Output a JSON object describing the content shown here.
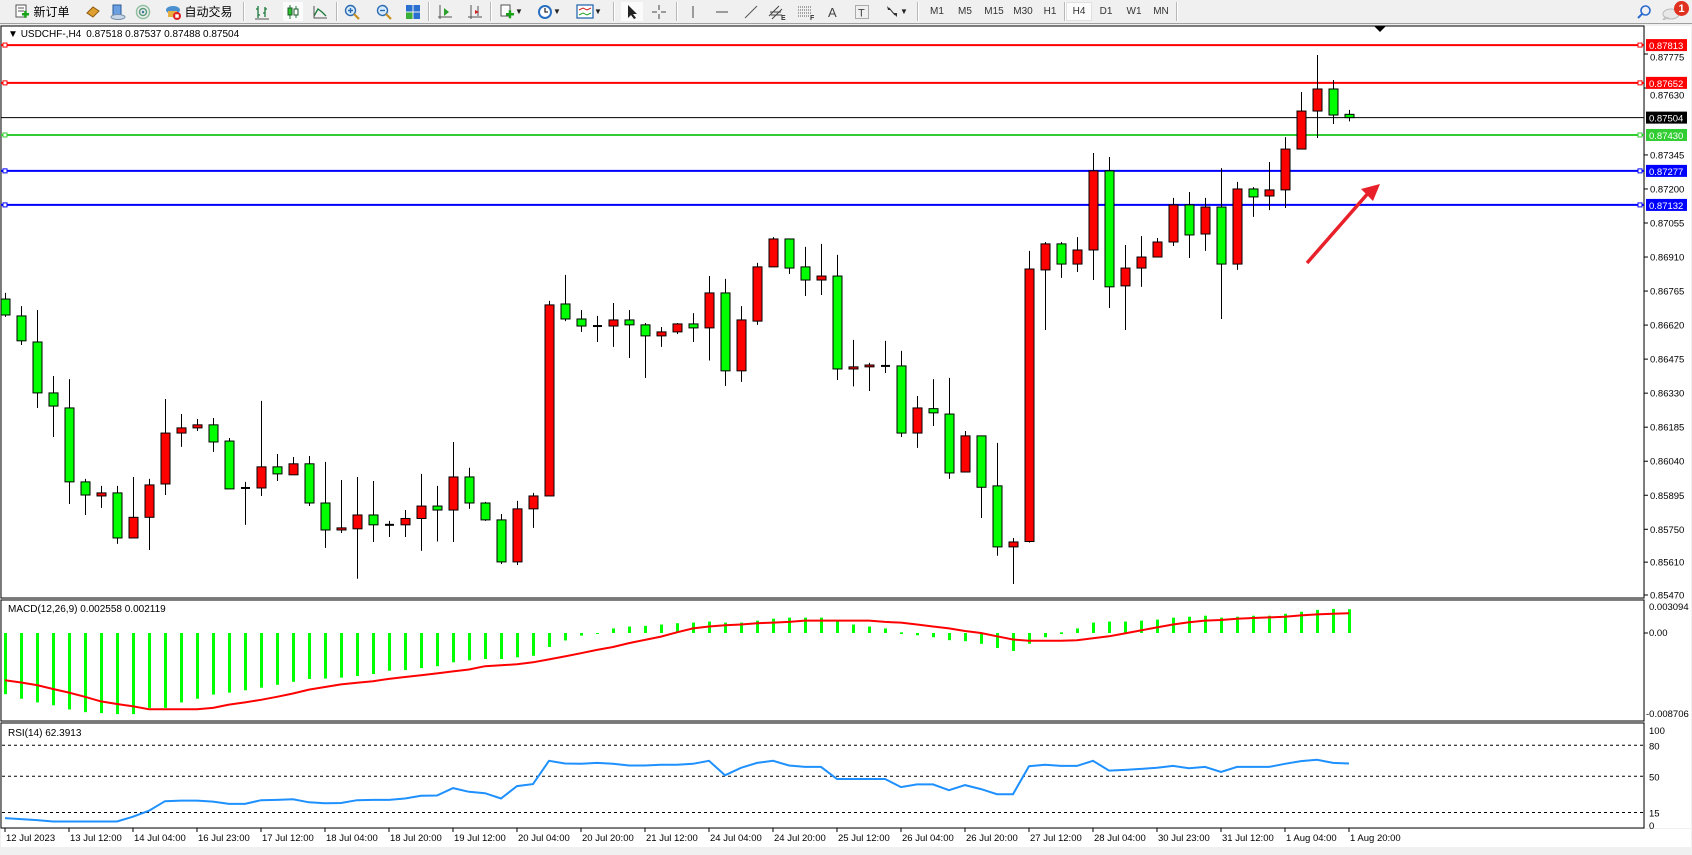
{
  "toolbar": {
    "new_order": "新订单",
    "auto_trading": "自动交易",
    "timeframes": [
      "M1",
      "M5",
      "M15",
      "M30",
      "H1",
      "H4",
      "D1",
      "W1",
      "MN"
    ],
    "active_timeframe": "H4",
    "notification_count": "1",
    "icons": [
      "new-order-icon",
      "market-watch-chest-icon",
      "navigator-icon",
      "signals-icon",
      "auto-trading-icon",
      "bar-chart-icon",
      "candlestick-icon",
      "line-chart-icon",
      "zoom-in-icon",
      "zoom-out-icon",
      "tile-windows-icon",
      "auto-scroll-icon",
      "chart-shift-icon",
      "new-chart-icon",
      "periods-clock-icon",
      "templates-icon",
      "cursor-icon",
      "crosshair-icon",
      "vertical-line-icon",
      "horizontal-line-icon",
      "trendline-icon",
      "equidistant-channel-icon",
      "fibonacci-icon",
      "text-icon",
      "text-label-icon",
      "arrows-icon",
      "search-icon",
      "chat-icon"
    ]
  },
  "chart": {
    "symbol": "USDCHF-,H4",
    "ohlc_text": "0.87518 0.87537 0.87488 0.87504",
    "bull_color": "#ff0000",
    "bear_color": "#00ff00",
    "price_lines": [
      {
        "price": 0.87813,
        "label": "0.87813",
        "color": "#ff0000"
      },
      {
        "price": 0.87652,
        "label": "0.87652",
        "color": "#ff0000"
      },
      {
        "price": 0.8743,
        "label": "0.87430",
        "color": "#32cd32"
      },
      {
        "price": 0.87277,
        "label": "0.87277",
        "color": "#0000ff"
      },
      {
        "price": 0.87132,
        "label": "0.87132",
        "color": "#0000ff"
      }
    ],
    "bid": {
      "price": 0.87504,
      "label": "0.87504",
      "color": "#000000"
    },
    "arrow_color": "#e8202a"
  },
  "macd": {
    "label": "MACD(12,26,9) 0.002558 0.002119",
    "axis_labels": [
      "0.003094",
      "0.00",
      "-0.008706"
    ],
    "hist_color": "#00ff00",
    "signal_color": "#ff0000"
  },
  "rsi": {
    "label": "RSI(14) 62.3913",
    "axis_labels": [
      "100",
      "80",
      "50",
      "15",
      "0"
    ],
    "levels": [
      80,
      50,
      15
    ],
    "color": "#1e90ff"
  },
  "chart_data": {
    "type": "candlestick",
    "symbol": "USDCHF-",
    "timeframe": "H4",
    "ylim": [
      0.8547,
      0.87813
    ],
    "y_ticks": [
      "0.87775",
      "0.87630",
      "0.87345",
      "0.87200",
      "0.87055",
      "0.86910",
      "0.86765",
      "0.86620",
      "0.86475",
      "0.86330",
      "0.86185",
      "0.86040",
      "0.85895",
      "0.85750",
      "0.85610",
      "0.85470"
    ],
    "time_labels": [
      "12 Jul 2023",
      "13 Jul 12:00",
      "14 Jul 04:00",
      "16 Jul 23:00",
      "17 Jul 12:00",
      "18 Jul 04:00",
      "18 Jul 20:00",
      "19 Jul 12:00",
      "20 Jul 04:00",
      "20 Jul 20:00",
      "21 Jul 12:00",
      "24 Jul 04:00",
      "24 Jul 20:00",
      "25 Jul 12:00",
      "26 Jul 04:00",
      "26 Jul 20:00",
      "27 Jul 12:00",
      "28 Jul 04:00",
      "30 Jul 23:00",
      "31 Jul 12:00",
      "1 Aug 04:00",
      "1 Aug 20:00"
    ],
    "ohlc_columns": [
      "open",
      "high",
      "low",
      "close"
    ],
    "candles": [
      [
        0.86731,
        0.86757,
        0.86655,
        0.86663
      ],
      [
        0.86659,
        0.86701,
        0.86535,
        0.86553
      ],
      [
        0.86548,
        0.86684,
        0.86267,
        0.86331
      ],
      [
        0.86331,
        0.86403,
        0.86143,
        0.86275
      ],
      [
        0.86267,
        0.8639,
        0.85858,
        0.85952
      ],
      [
        0.85952,
        0.85965,
        0.85811,
        0.85896
      ],
      [
        0.85892,
        0.85935,
        0.85841,
        0.85905
      ],
      [
        0.85905,
        0.85935,
        0.85688,
        0.85713
      ],
      [
        0.85713,
        0.85973,
        0.85713,
        0.85801
      ],
      [
        0.85801,
        0.85965,
        0.85662,
        0.85939
      ],
      [
        0.85943,
        0.86305,
        0.85896,
        0.8616
      ],
      [
        0.8616,
        0.86241,
        0.86101,
        0.86182
      ],
      [
        0.86182,
        0.8622,
        0.86169,
        0.86195
      ],
      [
        0.86195,
        0.86224,
        0.8608,
        0.86122
      ],
      [
        0.86126,
        0.86139,
        0.85922,
        0.85922
      ],
      [
        0.85922,
        0.85952,
        0.85769,
        0.85926
      ],
      [
        0.85926,
        0.86297,
        0.85892,
        0.86016
      ],
      [
        0.86016,
        0.86071,
        0.85956,
        0.85986
      ],
      [
        0.85982,
        0.86058,
        0.85982,
        0.86029
      ],
      [
        0.86029,
        0.86062,
        0.85849,
        0.85862
      ],
      [
        0.85862,
        0.86037,
        0.85671,
        0.85747
      ],
      [
        0.85747,
        0.8596,
        0.85734,
        0.85756
      ],
      [
        0.85752,
        0.85973,
        0.85539,
        0.85811
      ],
      [
        0.85811,
        0.85956,
        0.85696,
        0.85769
      ],
      [
        0.85769,
        0.85786,
        0.85717,
        0.85769
      ],
      [
        0.85769,
        0.85832,
        0.85717,
        0.85796
      ],
      [
        0.85796,
        0.85986,
        0.85658,
        0.85849
      ],
      [
        0.85849,
        0.85935,
        0.85698,
        0.85832
      ],
      [
        0.85832,
        0.86122,
        0.85696,
        0.85973
      ],
      [
        0.85973,
        0.86012,
        0.85837,
        0.85862
      ],
      [
        0.85862,
        0.85867,
        0.85786,
        0.8579
      ],
      [
        0.8579,
        0.85815,
        0.85602,
        0.85611
      ],
      [
        0.85611,
        0.85871,
        0.85598,
        0.85837
      ],
      [
        0.85837,
        0.85905,
        0.85756,
        0.85892
      ],
      [
        0.85892,
        0.86723,
        0.85892,
        0.86706
      ],
      [
        0.8671,
        0.86834,
        0.86637,
        0.86646
      ],
      [
        0.86646,
        0.86684,
        0.86591,
        0.86616
      ],
      [
        0.86616,
        0.86659,
        0.86548,
        0.86616
      ],
      [
        0.86616,
        0.86714,
        0.86527,
        0.86642
      ],
      [
        0.86642,
        0.86684,
        0.8648,
        0.86621
      ],
      [
        0.86621,
        0.86629,
        0.86395,
        0.86574
      ],
      [
        0.86574,
        0.86612,
        0.86527,
        0.86591
      ],
      [
        0.86591,
        0.86629,
        0.86582,
        0.86625
      ],
      [
        0.86625,
        0.86671,
        0.86548,
        0.86608
      ],
      [
        0.86608,
        0.86829,
        0.86469,
        0.86757
      ],
      [
        0.86757,
        0.86817,
        0.86361,
        0.86425
      ],
      [
        0.86425,
        0.86701,
        0.86378,
        0.86642
      ],
      [
        0.86637,
        0.86885,
        0.86621,
        0.86868
      ],
      [
        0.86868,
        0.86995,
        0.86868,
        0.86987
      ],
      [
        0.86987,
        0.86987,
        0.86838,
        0.86863
      ],
      [
        0.86868,
        0.86953,
        0.86744,
        0.86812
      ],
      [
        0.86812,
        0.86966,
        0.86748,
        0.86829
      ],
      [
        0.86829,
        0.86919,
        0.86386,
        0.86433
      ],
      [
        0.86433,
        0.86557,
        0.86359,
        0.86442
      ],
      [
        0.86442,
        0.86459,
        0.86339,
        0.8645
      ],
      [
        0.86446,
        0.86553,
        0.86416,
        0.86446
      ],
      [
        0.86446,
        0.8651,
        0.86143,
        0.8616
      ],
      [
        0.8616,
        0.86318,
        0.86097,
        0.86267
      ],
      [
        0.86264,
        0.8639,
        0.8619,
        0.86246
      ],
      [
        0.86241,
        0.86395,
        0.85965,
        0.8599
      ],
      [
        0.85994,
        0.86169,
        0.85994,
        0.86148
      ],
      [
        0.86148,
        0.86148,
        0.85798,
        0.85929
      ],
      [
        0.85935,
        0.86118,
        0.85637,
        0.85675
      ],
      [
        0.85675,
        0.85713,
        0.85517,
        0.85696
      ],
      [
        0.85698,
        0.86936,
        0.85693,
        0.86859
      ],
      [
        0.86855,
        0.86974,
        0.86599,
        0.86966
      ],
      [
        0.86966,
        0.86974,
        0.86821,
        0.8688
      ],
      [
        0.8688,
        0.86995,
        0.86846,
        0.8694
      ],
      [
        0.8694,
        0.87353,
        0.86812,
        0.87277
      ],
      [
        0.87277,
        0.87336,
        0.86693,
        0.86783
      ],
      [
        0.86787,
        0.86961,
        0.86599,
        0.86863
      ],
      [
        0.86863,
        0.86999,
        0.86783,
        0.8691
      ],
      [
        0.8691,
        0.86991,
        0.8691,
        0.86974
      ],
      [
        0.86974,
        0.87162,
        0.86957,
        0.87132
      ],
      [
        0.87132,
        0.87187,
        0.86906,
        0.87004
      ],
      [
        0.87008,
        0.87162,
        0.86936,
        0.87123
      ],
      [
        0.87123,
        0.87289,
        0.86646,
        0.8688
      ],
      [
        0.8688,
        0.8723,
        0.86855,
        0.872
      ],
      [
        0.872,
        0.87208,
        0.87081,
        0.87166
      ],
      [
        0.8717,
        0.87315,
        0.8711,
        0.87196
      ],
      [
        0.87196,
        0.87421,
        0.87119,
        0.8737
      ],
      [
        0.8737,
        0.87613,
        0.8737,
        0.87532
      ],
      [
        0.87532,
        0.87771,
        0.87417,
        0.87626
      ],
      [
        0.87626,
        0.87664,
        0.87477,
        0.87515
      ],
      [
        0.87518,
        0.87537,
        0.87488,
        0.87504
      ]
    ],
    "macd": {
      "ylim": [
        -0.008706,
        0.003094
      ],
      "histogram": [
        -0.00658,
        -0.00707,
        -0.00746,
        -0.00777,
        -0.00823,
        -0.00851,
        -0.00861,
        -0.00872,
        -0.00872,
        -0.00805,
        -0.00805,
        -0.00746,
        -0.00707,
        -0.00662,
        -0.00641,
        -0.00616,
        -0.00588,
        -0.00557,
        -0.00525,
        -0.00494,
        -0.0049,
        -0.0048,
        -0.00462,
        -0.00441,
        -0.00406,
        -0.00399,
        -0.00378,
        -0.00357,
        -0.00315,
        -0.00294,
        -0.0028,
        -0.0028,
        -0.00262,
        -0.00245,
        -0.0015,
        -0.0008,
        -0.00028,
        0.0,
        0.00049,
        0.0007,
        0.00077,
        0.00091,
        0.00105,
        0.00112,
        0.00123,
        0.00112,
        0.00112,
        0.00133,
        0.00154,
        0.00165,
        0.00165,
        0.00165,
        0.00133,
        0.00091,
        0.0007,
        0.00049,
        7e-05,
        -0.00025,
        -0.00046,
        -0.00077,
        -0.00088,
        -0.00116,
        -0.00161,
        -0.00193,
        -0.00116,
        -0.00046,
        7e-05,
        0.00049,
        0.00112,
        0.00123,
        0.00123,
        0.00133,
        0.00144,
        0.00165,
        0.00175,
        0.00186,
        0.00165,
        0.00175,
        0.00186,
        0.00186,
        0.00207,
        0.00228,
        0.00249,
        0.00259,
        0.002558
      ],
      "signal": [
        -0.00508,
        -0.00532,
        -0.0056,
        -0.00602,
        -0.00641,
        -0.00686,
        -0.00735,
        -0.00763,
        -0.00788,
        -0.00819,
        -0.00819,
        -0.00819,
        -0.00819,
        -0.00805,
        -0.0077,
        -0.00746,
        -0.00718,
        -0.00686,
        -0.00651,
        -0.00609,
        -0.00581,
        -0.00553,
        -0.00536,
        -0.00518,
        -0.00494,
        -0.00473,
        -0.00455,
        -0.00434,
        -0.00413,
        -0.00392,
        -0.00357,
        -0.00347,
        -0.00336,
        -0.00315,
        -0.00284,
        -0.00252,
        -0.00217,
        -0.00182,
        -0.00151,
        -0.00109,
        -0.00074,
        -0.00039,
        7e-05,
        0.00049,
        0.0007,
        0.00084,
        0.00091,
        0.00105,
        0.00112,
        0.00119,
        0.00133,
        0.00133,
        0.00133,
        0.00133,
        0.00133,
        0.00119,
        0.00112,
        0.00091,
        0.0007,
        0.00049,
        0.00021,
        0.0,
        -0.00035,
        -0.0007,
        -0.00084,
        -0.00084,
        -0.00084,
        -0.00077,
        -0.00056,
        -0.00035,
        -4e-05,
        0.00028,
        0.0006,
        0.00091,
        0.00116,
        0.00133,
        0.0014,
        0.00154,
        0.00161,
        0.00168,
        0.00175,
        0.00189,
        0.002,
        0.00207,
        0.002119
      ]
    },
    "rsi": {
      "ylim": [
        0,
        100
      ],
      "values": [
        9.6,
        8.6,
        7.6,
        6.3,
        6.3,
        6.3,
        6.3,
        6.3,
        10.9,
        16.7,
        25.9,
        26.5,
        26.5,
        25.5,
        23.3,
        23.3,
        26.9,
        27.2,
        27.8,
        24.9,
        23.9,
        24.2,
        26.9,
        27.2,
        27.2,
        28.5,
        31.1,
        31.4,
        38.6,
        35.0,
        33.7,
        28.5,
        40.5,
        42.5,
        65.0,
        62.4,
        62.1,
        63.0,
        62.1,
        60.4,
        60.4,
        61.1,
        61.1,
        62.1,
        65.0,
        51.0,
        58.2,
        63.0,
        65.0,
        60.4,
        59.1,
        59.1,
        47.4,
        47.4,
        47.4,
        47.4,
        39.6,
        42.2,
        42.2,
        36.6,
        41.5,
        37.6,
        32.7,
        32.7,
        59.8,
        61.1,
        60.1,
        60.1,
        65.0,
        55.5,
        56.2,
        57.2,
        58.2,
        60.1,
        57.8,
        59.1,
        54.2,
        59.1,
        59.1,
        59.1,
        62.1,
        64.7,
        66.0,
        63.0,
        62.3913
      ]
    }
  }
}
